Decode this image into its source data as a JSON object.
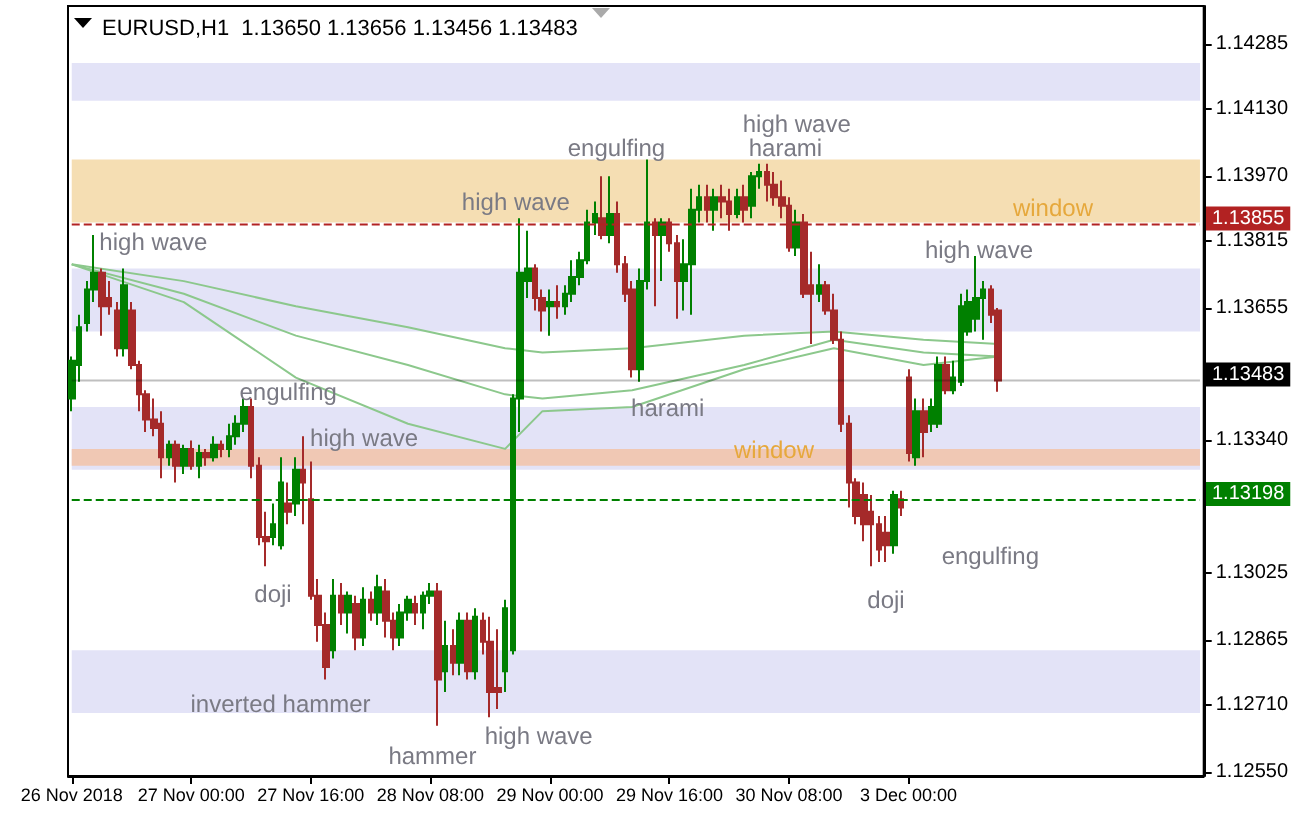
{
  "chart_data": {
    "type": "candlestick",
    "title": "EURUSD,H1  1.13650 1.13656 1.13456 1.13483",
    "categories": [
      "26 Nov 2018",
      null,
      null,
      null,
      null,
      null,
      null,
      null,
      null,
      null,
      null,
      null,
      null,
      null,
      null,
      null,
      "27 Nov 00:00",
      null,
      null,
      null,
      null,
      null,
      null,
      null,
      null,
      null,
      null,
      null,
      null,
      null,
      null,
      null,
      "27 Nov 16:00",
      null,
      null,
      null,
      null,
      null,
      null,
      null,
      null,
      null,
      null,
      null,
      null,
      null,
      null,
      null,
      "28 Nov 08:00",
      null,
      null,
      null,
      null,
      null,
      null,
      null,
      null,
      null,
      null,
      null,
      null,
      null,
      null,
      null,
      "29 Nov 00:00",
      null,
      null,
      null,
      null,
      null,
      null,
      null,
      null,
      null,
      null,
      null,
      null,
      null,
      null,
      null,
      "29 Nov 16:00",
      null,
      null,
      null,
      null,
      null,
      null,
      null,
      null,
      null,
      null,
      null,
      null,
      null,
      null,
      null,
      "30 Nov 08:00",
      null,
      null,
      null,
      null,
      null,
      null,
      null,
      null,
      null,
      null,
      null,
      null,
      null,
      null,
      null,
      "3 Dec 00:00",
      null,
      null,
      null,
      null,
      null,
      null,
      null,
      null,
      null,
      null,
      null,
      null,
      null,
      null,
      null,
      null,
      null,
      null,
      null,
      null,
      null,
      null,
      null,
      null,
      null,
      null,
      null,
      null,
      null,
      null,
      null,
      null,
      null,
      null,
      null,
      null,
      null,
      null,
      null
    ],
    "ohlc": [
      [
        1.1344,
        1.1354,
        1.1341,
        1.1353
      ],
      [
        1.1352,
        1.1364,
        1.1348,
        1.1361
      ],
      [
        1.1362,
        1.1372,
        1.136,
        1.137
      ],
      [
        1.137,
        1.1383,
        1.1367,
        1.1374
      ],
      [
        1.1374,
        1.1375,
        1.1359,
        1.1366
      ],
      [
        1.1368,
        1.1372,
        1.1364,
        1.1366
      ],
      [
        1.1365,
        1.1367,
        1.1354,
        1.1356
      ],
      [
        1.1356,
        1.1375,
        1.1354,
        1.1371
      ],
      [
        1.1365,
        1.1367,
        1.1351,
        1.1352
      ],
      [
        1.1352,
        1.1353,
        1.1341,
        1.1345
      ],
      [
        1.1345,
        1.1346,
        1.1336,
        1.1339
      ],
      [
        1.1339,
        1.1344,
        1.1335,
        1.1337
      ],
      [
        1.1338,
        1.1341,
        1.1325,
        1.133
      ],
      [
        1.133,
        1.1334,
        1.1328,
        1.1333
      ],
      [
        1.1333,
        1.1334,
        1.1324,
        1.1328
      ],
      [
        1.1328,
        1.1333,
        1.1326,
        1.1332
      ],
      [
        1.1332,
        1.1334,
        1.1327,
        1.1328
      ],
      [
        1.1328,
        1.1333,
        1.1325,
        1.1331
      ],
      [
        1.1331,
        1.1332,
        1.1328,
        1.133
      ],
      [
        1.133,
        1.1335,
        1.1329,
        1.1333
      ],
      [
        1.1333,
        1.1334,
        1.133,
        1.1332
      ],
      [
        1.1332,
        1.1338,
        1.133,
        1.1335
      ],
      [
        1.1335,
        1.134,
        1.1333,
        1.1338
      ],
      [
        1.1338,
        1.1344,
        1.1336,
        1.1342
      ],
      [
        1.1342,
        1.1344,
        1.1325,
        1.1328
      ],
      [
        1.1328,
        1.133,
        1.1309,
        1.1311
      ],
      [
        1.1311,
        1.1317,
        1.1304,
        1.131
      ],
      [
        1.1311,
        1.1319,
        1.1309,
        1.1314
      ],
      [
        1.1309,
        1.133,
        1.1308,
        1.1324
      ],
      [
        1.1319,
        1.1324,
        1.1314,
        1.1317
      ],
      [
        1.1319,
        1.133,
        1.1316,
        1.1327
      ],
      [
        1.1327,
        1.1335,
        1.1314,
        1.1324
      ],
      [
        1.132,
        1.1329,
        1.1296,
        1.1297
      ],
      [
        1.1297,
        1.1301,
        1.1286,
        1.129
      ],
      [
        1.129,
        1.1293,
        1.1277,
        1.128
      ],
      [
        1.1284,
        1.1301,
        1.1282,
        1.1297
      ],
      [
        1.1297,
        1.13,
        1.129,
        1.1293
      ],
      [
        1.1293,
        1.1298,
        1.1288,
        1.1297
      ],
      [
        1.1295,
        1.1297,
        1.1284,
        1.1287
      ],
      [
        1.1287,
        1.1299,
        1.1285,
        1.1296
      ],
      [
        1.1296,
        1.1298,
        1.1291,
        1.1293
      ],
      [
        1.1293,
        1.1302,
        1.129,
        1.1299
      ],
      [
        1.1298,
        1.1301,
        1.1287,
        1.1291
      ],
      [
        1.1291,
        1.1293,
        1.1284,
        1.1287
      ],
      [
        1.1287,
        1.1295,
        1.1285,
        1.1293
      ],
      [
        1.1293,
        1.1297,
        1.1291,
        1.1296
      ],
      [
        1.1295,
        1.1297,
        1.129,
        1.1293
      ],
      [
        1.1293,
        1.1298,
        1.1289,
        1.1297
      ],
      [
        1.1297,
        1.13,
        1.1295,
        1.1298
      ],
      [
        1.1298,
        1.13,
        1.1266,
        1.1277
      ],
      [
        1.1279,
        1.1291,
        1.1274,
        1.1285
      ],
      [
        1.1285,
        1.1289,
        1.1278,
        1.1281
      ],
      [
        1.1281,
        1.1293,
        1.1278,
        1.1291
      ],
      [
        1.1291,
        1.1293,
        1.1277,
        1.1279
      ],
      [
        1.1279,
        1.1294,
        1.1277,
        1.1292
      ],
      [
        1.1291,
        1.1293,
        1.1283,
        1.1286
      ],
      [
        1.1286,
        1.1292,
        1.1268,
        1.1274
      ],
      [
        1.1275,
        1.1289,
        1.127,
        1.1274
      ],
      [
        1.1279,
        1.1296,
        1.1274,
        1.1294
      ],
      [
        1.1284,
        1.1345,
        1.1283,
        1.1344
      ],
      [
        1.1344,
        1.1387,
        1.1336,
        1.1374
      ],
      [
        1.1372,
        1.1384,
        1.1368,
        1.1375
      ],
      [
        1.1375,
        1.1376,
        1.1365,
        1.1368
      ],
      [
        1.1368,
        1.137,
        1.136,
        1.1365
      ],
      [
        1.1366,
        1.137,
        1.1359,
        1.1367
      ],
      [
        1.1367,
        1.1371,
        1.1363,
        1.1366
      ],
      [
        1.1366,
        1.1371,
        1.1364,
        1.1369
      ],
      [
        1.1369,
        1.1377,
        1.1367,
        1.1373
      ],
      [
        1.1373,
        1.1379,
        1.1371,
        1.1377
      ],
      [
        1.1377,
        1.1389,
        1.1376,
        1.1386
      ],
      [
        1.1386,
        1.1391,
        1.1383,
        1.1388
      ],
      [
        1.1387,
        1.1397,
        1.1382,
        1.1383
      ],
      [
        1.1383,
        1.1397,
        1.1381,
        1.1388
      ],
      [
        1.1388,
        1.1391,
        1.1374,
        1.1376
      ],
      [
        1.1376,
        1.1378,
        1.1367,
        1.1369
      ],
      [
        1.137,
        1.1372,
        1.1349,
        1.1351
      ],
      [
        1.1351,
        1.1375,
        1.1348,
        1.1372
      ],
      [
        1.1372,
        1.1401,
        1.137,
        1.1386
      ],
      [
        1.1386,
        1.1387,
        1.1366,
        1.1383
      ],
      [
        1.1383,
        1.1387,
        1.1372,
        1.1386
      ],
      [
        1.1386,
        1.1387,
        1.1379,
        1.1381
      ],
      [
        1.1381,
        1.1383,
        1.1363,
        1.1372
      ],
      [
        1.1372,
        1.1382,
        1.1365,
        1.1376
      ],
      [
        1.1376,
        1.1394,
        1.1364,
        1.1389
      ],
      [
        1.1389,
        1.1395,
        1.1386,
        1.1392
      ],
      [
        1.1392,
        1.1395,
        1.1386,
        1.1389
      ],
      [
        1.1389,
        1.1394,
        1.1384,
        1.1392
      ],
      [
        1.1392,
        1.1395,
        1.1387,
        1.1391
      ],
      [
        1.1391,
        1.1394,
        1.1384,
        1.1388
      ],
      [
        1.1388,
        1.1394,
        1.1387,
        1.1392
      ],
      [
        1.1392,
        1.1395,
        1.1386,
        1.1389
      ],
      [
        1.139,
        1.1398,
        1.1387,
        1.1397
      ],
      [
        1.1397,
        1.14,
        1.1394,
        1.1398
      ],
      [
        1.1398,
        1.14,
        1.1391,
        1.1395
      ],
      [
        1.1395,
        1.1398,
        1.139,
        1.1392
      ],
      [
        1.1392,
        1.1396,
        1.1387,
        1.139
      ],
      [
        1.139,
        1.1392,
        1.1379,
        1.138
      ],
      [
        1.138,
        1.1389,
        1.1378,
        1.1386
      ],
      [
        1.1386,
        1.1388,
        1.1368,
        1.1369
      ],
      [
        1.1371,
        1.1379,
        1.1357,
        1.1369
      ],
      [
        1.1369,
        1.1376,
        1.1367,
        1.1371
      ],
      [
        1.1371,
        1.1372,
        1.1364,
        1.1365
      ],
      [
        1.1365,
        1.1369,
        1.1357,
        1.1358
      ],
      [
        1.1358,
        1.136,
        1.1336,
        1.1338
      ],
      [
        1.1338,
        1.134,
        1.1318,
        1.1324
      ],
      [
        1.1324,
        1.1325,
        1.1314,
        1.1316
      ],
      [
        1.1321,
        1.1324,
        1.131,
        1.1314
      ],
      [
        1.1317,
        1.1321,
        1.1304,
        1.1314
      ],
      [
        1.1314,
        1.1316,
        1.1305,
        1.1308
      ],
      [
        1.1312,
        1.1316,
        1.1305,
        1.1309
      ],
      [
        1.1309,
        1.1322,
        1.1307,
        1.1321
      ],
      [
        1.132,
        1.1322,
        1.1316,
        1.1318
      ],
      [
        1.1349,
        1.1351,
        1.1329,
        1.1331
      ],
      [
        1.133,
        1.1344,
        1.1328,
        1.1341
      ],
      [
        1.1341,
        1.1344,
        1.133,
        1.1336
      ],
      [
        1.1338,
        1.1344,
        1.1336,
        1.1342
      ],
      [
        1.1338,
        1.1354,
        1.1337,
        1.1352
      ],
      [
        1.1352,
        1.1354,
        1.1345,
        1.1346
      ],
      [
        1.1346,
        1.1353,
        1.1345,
        1.1349
      ],
      [
        1.1348,
        1.1369,
        1.1347,
        1.1366
      ],
      [
        1.136,
        1.137,
        1.1359,
        1.1367
      ],
      [
        1.1363,
        1.1378,
        1.136,
        1.1368
      ],
      [
        1.1368,
        1.1372,
        1.1358,
        1.137
      ],
      [
        1.137,
        1.1371,
        1.1362,
        1.1364
      ],
      [
        1.1365,
        1.13656,
        1.13456,
        1.13483
      ],
      null,
      null,
      null,
      null,
      null,
      null,
      null,
      null,
      null,
      null,
      null,
      null,
      null,
      null,
      null,
      null,
      null,
      null,
      null,
      null,
      null,
      null,
      null,
      null,
      null,
      null,
      null
    ],
    "series": [
      {
        "type": "line",
        "color": "#8cc88c",
        "values": [
          1.1376,
          null,
          null,
          null,
          null,
          null,
          null,
          null,
          null,
          null,
          null,
          null,
          null,
          null,
          null,
          1.1372,
          null,
          null,
          null,
          null,
          null,
          null,
          null,
          null,
          null,
          null,
          null,
          null,
          null,
          null,
          1.1366,
          null,
          null,
          null,
          null,
          null,
          null,
          null,
          null,
          null,
          null,
          null,
          null,
          null,
          null,
          1.1361,
          null,
          null,
          null,
          null,
          null,
          null,
          null,
          null,
          null,
          null,
          null,
          null,
          1.1356,
          null,
          null,
          null,
          null,
          1.1355,
          null,
          null,
          null,
          null,
          null,
          null,
          null,
          null,
          null,
          null,
          null,
          1.1356,
          null,
          null,
          null,
          null,
          null,
          null,
          null,
          null,
          null,
          null,
          null,
          null,
          null,
          null,
          1.1359,
          null,
          null,
          null,
          null,
          null,
          null,
          null,
          null,
          null,
          null,
          null,
          1.136,
          null,
          null,
          null,
          null,
          null,
          null,
          null,
          null,
          null,
          null,
          null,
          1.1358,
          null,
          null,
          null,
          null,
          null,
          null,
          null,
          null,
          null,
          1.1357,
          null,
          null,
          null,
          null,
          null,
          null,
          null,
          null,
          null,
          null,
          null,
          null,
          null,
          null,
          null,
          null,
          null,
          null,
          null,
          null,
          null,
          null,
          null,
          null,
          null,
          null,
          null
        ]
      },
      {
        "type": "line",
        "color": "#8cc88c",
        "values": [
          1.1376,
          null,
          null,
          null,
          null,
          null,
          null,
          null,
          null,
          null,
          null,
          null,
          null,
          null,
          null,
          1.1369,
          null,
          null,
          null,
          null,
          null,
          null,
          null,
          null,
          null,
          null,
          null,
          null,
          null,
          null,
          1.1359,
          null,
          null,
          null,
          null,
          null,
          null,
          null,
          null,
          null,
          null,
          null,
          null,
          null,
          null,
          1.1352,
          null,
          null,
          null,
          null,
          null,
          null,
          null,
          null,
          null,
          null,
          null,
          null,
          1.1345,
          null,
          null,
          null,
          null,
          1.1344,
          null,
          null,
          null,
          null,
          null,
          null,
          null,
          null,
          null,
          null,
          null,
          1.1346,
          null,
          null,
          null,
          null,
          null,
          null,
          null,
          null,
          null,
          null,
          null,
          null,
          null,
          null,
          1.1352,
          null,
          null,
          null,
          null,
          null,
          null,
          null,
          null,
          null,
          null,
          null,
          1.1358,
          null,
          null,
          null,
          null,
          null,
          null,
          null,
          null,
          null,
          null,
          null,
          1.1355,
          null,
          null,
          null,
          null,
          null,
          null,
          null,
          null,
          null,
          1.1354,
          null,
          null,
          null,
          null,
          null,
          null,
          null,
          null,
          null,
          null,
          null,
          null,
          null,
          null,
          null,
          null,
          null,
          null,
          null,
          null,
          null,
          null,
          null,
          null,
          null,
          null,
          null
        ]
      },
      {
        "type": "line",
        "color": "#8cc88c",
        "values": [
          1.1376,
          null,
          null,
          null,
          null,
          null,
          null,
          null,
          null,
          null,
          null,
          null,
          null,
          null,
          null,
          1.1367,
          null,
          null,
          null,
          null,
          null,
          null,
          null,
          null,
          null,
          null,
          null,
          null,
          null,
          null,
          1.1349,
          null,
          null,
          null,
          null,
          null,
          null,
          null,
          null,
          null,
          null,
          null,
          null,
          null,
          null,
          1.1338,
          null,
          null,
          null,
          null,
          null,
          null,
          null,
          null,
          null,
          null,
          null,
          null,
          1.1332,
          null,
          null,
          null,
          null,
          1.1341,
          null,
          null,
          null,
          null,
          null,
          null,
          null,
          null,
          null,
          null,
          null,
          1.1342,
          null,
          null,
          null,
          null,
          null,
          null,
          null,
          null,
          null,
          null,
          null,
          null,
          null,
          null,
          1.1351,
          null,
          null,
          null,
          null,
          null,
          null,
          null,
          null,
          null,
          null,
          null,
          1.1356,
          null,
          null,
          null,
          null,
          null,
          null,
          null,
          null,
          null,
          null,
          null,
          1.1352,
          null,
          null,
          null,
          null,
          null,
          null,
          null,
          null,
          null,
          1.1354,
          null,
          null,
          null,
          null,
          null,
          null,
          null,
          null,
          null,
          null,
          null,
          null,
          null,
          null,
          null,
          null,
          null,
          null,
          null,
          null,
          null,
          null,
          null,
          null,
          null,
          null,
          null
        ]
      }
    ],
    "ylim": [
      1.1254,
      1.14376
    ],
    "yticks": [
      {
        "value": 1.1255,
        "label": "1.12550"
      },
      {
        "value": 1.1271,
        "label": "1.12710"
      },
      1.12865,
      1.13025,
      {
        "value": 1.1334,
        "label": "1.13340"
      },
      1.13655,
      1.13815,
      {
        "value": 1.1397,
        "label": "1.13970"
      },
      {
        "value": 1.1413,
        "label": "1.14130"
      },
      1.14285
    ],
    "ref_lines": [
      {
        "axis": "y",
        "value": 1.13855,
        "label": "1.13855",
        "color": "#b22222",
        "line_style": "dashed"
      },
      {
        "axis": "y",
        "value": 1.13483,
        "label": "1.13483",
        "color": "#000000",
        "line_style": "solid"
      },
      {
        "axis": "y",
        "value": 1.13198,
        "label": "1.13198",
        "color": "#008000",
        "line_style": "dashed"
      }
    ],
    "bands": [
      {
        "axis": "y",
        "from": 1.1415,
        "to": 1.1424,
        "color": "#e3e3f7"
      },
      {
        "axis": "y",
        "from": 1.1386,
        "to": 1.1401,
        "color": "#f5deb3"
      },
      {
        "axis": "y",
        "from": 1.136,
        "to": 1.1375,
        "color": "#e3e3f7"
      },
      {
        "axis": "y",
        "from": 1.1327,
        "to": 1.1342,
        "color": "#e3e3f7"
      },
      {
        "axis": "y",
        "from": 1.1328,
        "to": 1.1332,
        "color": "#f0c8b4"
      },
      {
        "axis": "y",
        "from": 1.1269,
        "to": 1.1284,
        "color": "#e3e3f7"
      }
    ],
    "annotations": [
      "high wave",
      "engulfing",
      "high wave",
      "doji",
      "inverted hammer",
      "hammer",
      "high wave",
      "high wave",
      "engulfing",
      "high wave",
      "harami",
      "harami",
      "window",
      "window",
      "high wave",
      "engulfing",
      "doji"
    ],
    "marker": "none",
    "grid": false
  }
}
